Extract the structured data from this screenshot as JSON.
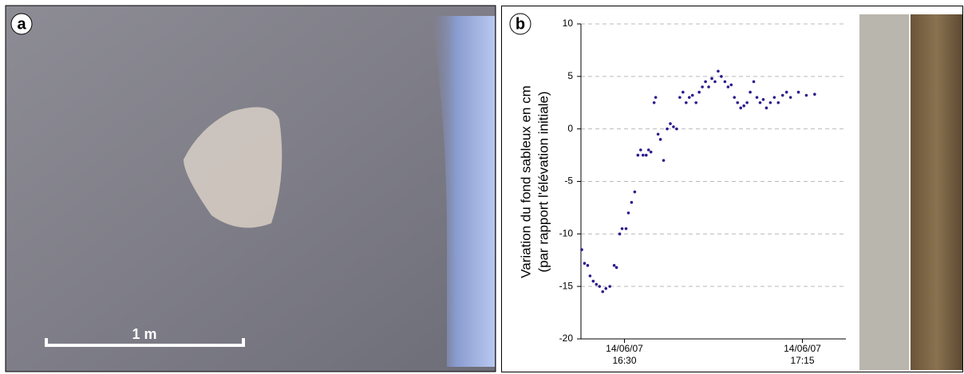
{
  "panel_labels": [
    "a",
    "b"
  ],
  "scale_bar": "1 m",
  "chart_data": {
    "type": "scatter",
    "ylabel": [
      "Variation du fond sableux en cm",
      "(par rapport l'élévation initiale)"
    ],
    "color": "#2e1a8c",
    "x": [
      979.2,
      979.9,
      980.7,
      981.3,
      982.1,
      982.9,
      983.7,
      984.5,
      985.3,
      986.3,
      987.4,
      988.0,
      988.8,
      989.4,
      990.4,
      991.0,
      991.8,
      992.6,
      993.4,
      994.1,
      994.7,
      995.5,
      996.1,
      996.7,
      997.5,
      997.9,
      998.5,
      999.1,
      999.9,
      1000.8,
      1001.6,
      1002.4,
      1003.2,
      1004.0,
      1004.8,
      1005.6,
      1006.4,
      1007.2,
      1008.1,
      1008.9,
      1009.7,
      1010.5,
      1011.3,
      1012.1,
      1012.9,
      1013.7,
      1014.5,
      1015.4,
      1016.2,
      1017.0,
      1017.8,
      1018.6,
      1019.4,
      1020.2,
      1021.0,
      1021.8,
      1022.7,
      1023.5,
      1024.3,
      1025.1,
      1025.9,
      1026.9,
      1027.9,
      1028.9,
      1030.0,
      1031.0,
      1032.0,
      1034.0,
      1036.0,
      1038.1
    ],
    "values": [
      -11.5,
      -12.8,
      -13,
      -14,
      -14.5,
      -14.8,
      -15,
      -15.5,
      -15.2,
      -15,
      -13,
      -13.2,
      -10,
      -9.5,
      -9.5,
      -8,
      -7,
      -6,
      -2.5,
      -2,
      -2.5,
      -2.5,
      -2,
      -2.2,
      2.5,
      3,
      -0.5,
      -1,
      -3,
      0,
      0.5,
      0.2,
      0,
      3,
      3.5,
      2.5,
      3,
      3.2,
      2.5,
      3.5,
      4,
      4.5,
      4,
      4.8,
      4.5,
      5.5,
      5,
      4.5,
      4,
      4.2,
      3,
      2.5,
      2,
      2.2,
      2.5,
      3.5,
      4.5,
      3,
      2.5,
      2.8,
      2,
      2.5,
      3,
      2.5,
      3.2,
      3.5,
      3,
      3.5,
      3.2,
      3.3
    ],
    "xlim": [
      979,
      1046
    ],
    "xticks": [
      {
        "value": 990,
        "label": "14/06/07 16:30"
      },
      {
        "value": 1035,
        "label": "14/06/07 17:15"
      }
    ],
    "ylim": [
      -20,
      10
    ],
    "yticks": [
      -20,
      -15,
      -10,
      -5,
      0,
      5,
      10
    ],
    "grid": true
  }
}
